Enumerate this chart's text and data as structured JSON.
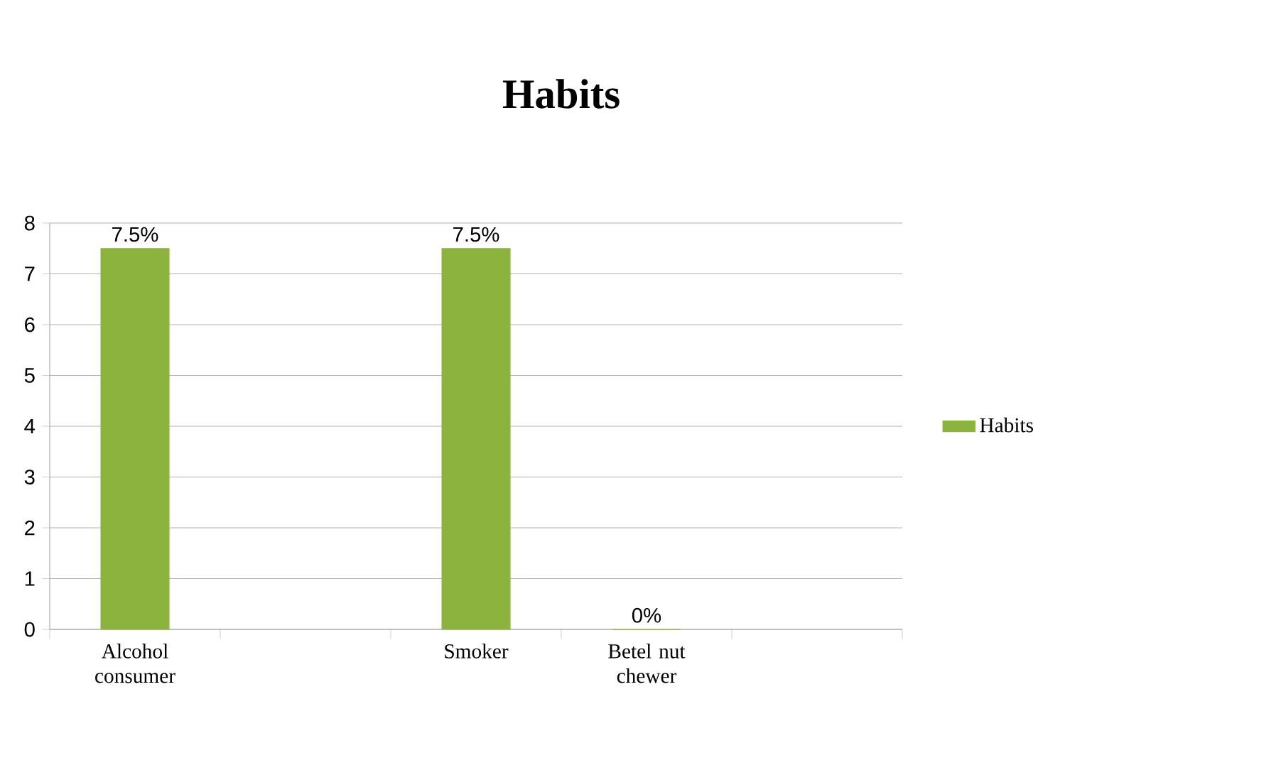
{
  "chart_data": {
    "type": "bar",
    "title": "Habits",
    "categories": [
      "Alcohol consumer",
      null,
      "Smoker",
      "Betel nut chewer",
      null
    ],
    "series": [
      {
        "name": "Habits",
        "color": "#8db33f",
        "values": [
          7.5,
          null,
          7.5,
          0,
          null
        ],
        "value_labels": [
          "7.5%",
          null,
          "7.5%",
          "0%",
          null
        ]
      }
    ],
    "ylim": [
      0,
      8
    ],
    "yticks": [
      0,
      1,
      2,
      3,
      4,
      5,
      6,
      7,
      8
    ],
    "grid": "y",
    "legend": "right"
  }
}
